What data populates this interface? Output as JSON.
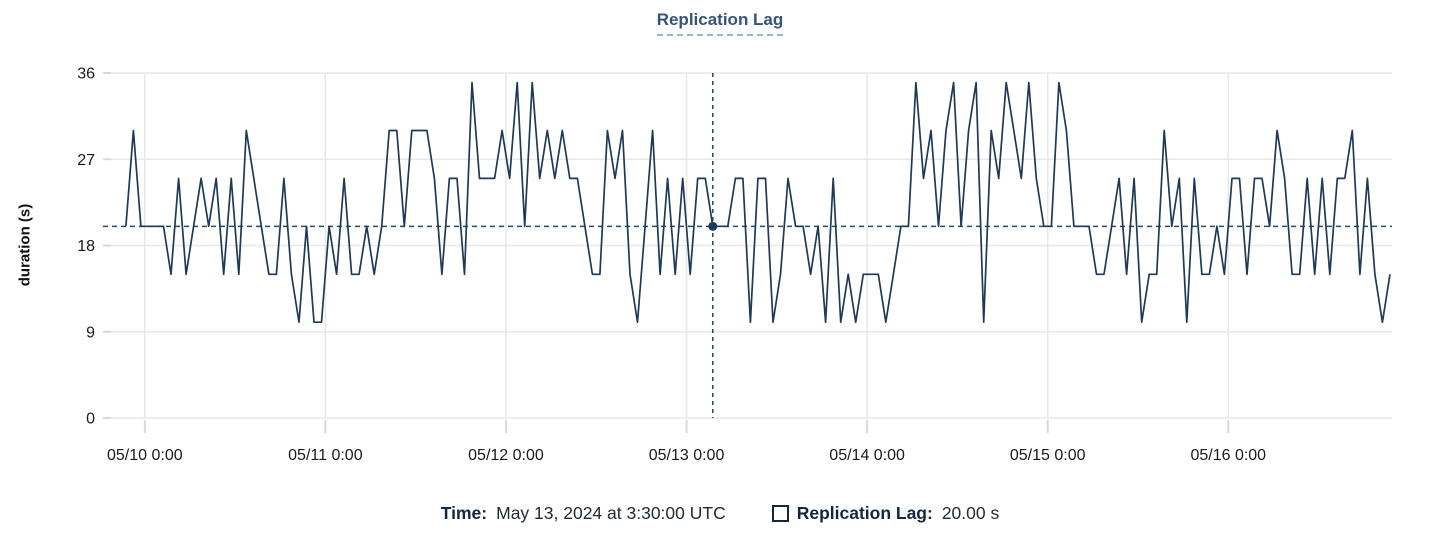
{
  "chart_data": {
    "type": "line",
    "title": "Replication Lag",
    "xlabel": "",
    "ylabel": "duration (s)",
    "ylim": [
      0,
      36
    ],
    "y_ticks": [
      0,
      9,
      18,
      27,
      36
    ],
    "x_tick_labels": [
      "05/10 0:00",
      "05/11 0:00",
      "05/12 0:00",
      "05/13 0:00",
      "05/14 0:00",
      "05/15 0:00",
      "05/16 0:00"
    ],
    "x_interval_hours": 1,
    "x_start_estimate": "05/09 ~21:30 UTC",
    "grid": true,
    "legend_position": "bottom",
    "series": [
      {
        "name": "Replication Lag",
        "unit": "s",
        "values": [
          20,
          30,
          20,
          20,
          20,
          20,
          15,
          25,
          15,
          20,
          25,
          20,
          25,
          15,
          25,
          15,
          30,
          25,
          20,
          15,
          15,
          25,
          15,
          10,
          20,
          10,
          10,
          20,
          15,
          25,
          15,
          15,
          20,
          15,
          20,
          30,
          30,
          20,
          30,
          30,
          30,
          25,
          15,
          25,
          25,
          15,
          35,
          25,
          25,
          25,
          30,
          25,
          35,
          20,
          35,
          25,
          30,
          25,
          30,
          25,
          25,
          20,
          15,
          15,
          30,
          25,
          30,
          15,
          10,
          20,
          30,
          15,
          25,
          15,
          25,
          15,
          25,
          25,
          20,
          20,
          20,
          25,
          25,
          10,
          25,
          25,
          10,
          15,
          25,
          20,
          20,
          15,
          20,
          10,
          25,
          10,
          15,
          10,
          15,
          15,
          15,
          10,
          15,
          20,
          20,
          35,
          25,
          30,
          20,
          30,
          35,
          20,
          30,
          35,
          10,
          30,
          25,
          35,
          30,
          25,
          35,
          25,
          20,
          20,
          35,
          30,
          20,
          20,
          20,
          15,
          15,
          20,
          25,
          15,
          25,
          10,
          15,
          15,
          30,
          20,
          25,
          10,
          25,
          15,
          15,
          20,
          15,
          25,
          25,
          15,
          25,
          25,
          20,
          30,
          25,
          15,
          15,
          25,
          15,
          25,
          15,
          25,
          25,
          30,
          15,
          25,
          15,
          10,
          15
        ]
      }
    ],
    "selected_point": {
      "index": 78,
      "time": "May 13, 2024 at 3:30:00 UTC",
      "value": 20,
      "formatted": "20.00 s"
    }
  },
  "tooltip": {
    "time_label": "Time:",
    "time_value": "May 13, 2024 at 3:30:00 UTC",
    "series_label": "Replication Lag:",
    "series_value": "20.00 s"
  },
  "colors": {
    "line": "#1d3a58",
    "crosshair": "#2a4a68",
    "marker": "#1d3a58",
    "title": "#34547e",
    "title_underline": "#9db4cc",
    "grid": "#e8e8e8",
    "tick": "#d9d9d9",
    "axis_text": "#1a1a1a",
    "tooltip_label": "#13273f",
    "tooltip_value": "#212a35",
    "background": "#ffffff"
  }
}
